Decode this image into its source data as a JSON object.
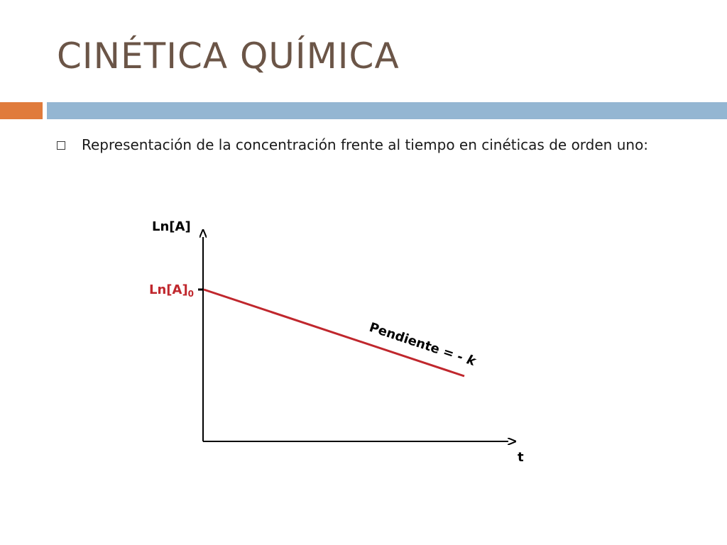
{
  "slide": {
    "title": "CINÉTICA QUÍMICA",
    "bullet_text": "Representación de la concentración frente al tiempo en cinéticas de orden uno:",
    "accent_colors": {
      "orange": "#e07b3c",
      "blue": "#94b6d2"
    }
  },
  "diagram": {
    "y_axis_label": "Ln[A]",
    "x_axis_label": "t",
    "intercept_label_main": "Ln[A]",
    "intercept_label_sub": "0",
    "slope_label": "Pendiente = ",
    "slope_label_k": "- k",
    "line_color": "#c0272d",
    "intercept_label_color": "#c0272d",
    "axis_color": "#000000"
  }
}
